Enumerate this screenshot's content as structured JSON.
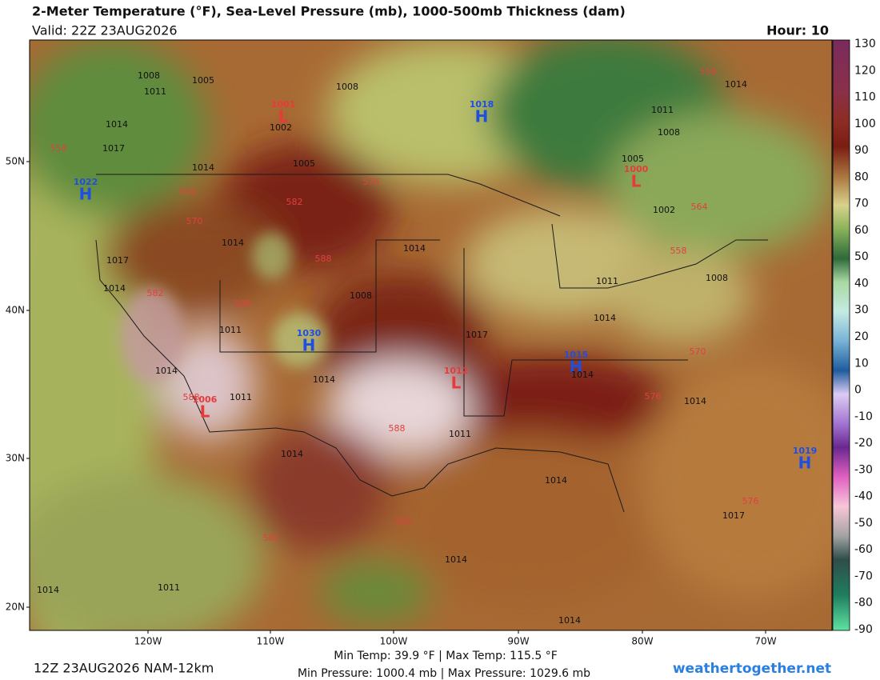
{
  "header": {
    "title": "2-Meter Temperature (°F), Sea-Level Pressure (mb), 1000-500mb Thickness (dam)",
    "valid": "Valid: 22Z 23AUG2026",
    "hour": "Hour: 10"
  },
  "colorbar": {
    "ticks": [
      130,
      120,
      110,
      100,
      90,
      80,
      70,
      60,
      50,
      40,
      30,
      20,
      10,
      0,
      -10,
      -20,
      -30,
      -40,
      -50,
      -60,
      -70,
      -80,
      -90
    ]
  },
  "map": {
    "lat_labels": [
      "50N",
      "40N",
      "30N",
      "20N"
    ],
    "lon_labels": [
      "120W",
      "110W",
      "100W",
      "90W",
      "80W",
      "70W"
    ],
    "highs": [
      {
        "symbol": "H",
        "value": 1018
      },
      {
        "symbol": "H",
        "value": 1022
      },
      {
        "symbol": "H",
        "value": 1030
      },
      {
        "symbol": "H",
        "value": 1015
      },
      {
        "symbol": "H",
        "value": 1019
      }
    ],
    "lows": [
      {
        "symbol": "L",
        "value": 1001
      },
      {
        "symbol": "L",
        "value": 1000
      },
      {
        "symbol": "L",
        "value": 1012
      },
      {
        "symbol": "L",
        "value": 1006
      }
    ],
    "isobar_labels": [
      1008,
      1005,
      1008,
      1011,
      1014,
      1002,
      1014,
      1011,
      1008,
      1017,
      1005,
      1005,
      1014,
      1002,
      1014,
      1014,
      1017,
      1008,
      1014,
      1008,
      1011,
      1014,
      1017,
      1011,
      1014,
      1014,
      1014,
      1011,
      1014,
      1011,
      1014,
      1014,
      1017,
      1014,
      1014,
      1011,
      1014
    ],
    "thickness_labels": [
      558,
      558,
      564,
      570,
      582,
      576,
      588,
      582,
      588,
      564,
      558,
      570,
      576,
      588,
      582,
      582,
      576,
      588
    ]
  },
  "footer": {
    "run": "12Z 23AUG2026 NAM-12km",
    "temps": "Min Temp:  39.9 °F | Max Temp: 115.5 °F",
    "pressures": "Min Pressure: 1000.4 mb | Max Pressure: 1029.6 mb",
    "site": "weathertogether.net"
  }
}
